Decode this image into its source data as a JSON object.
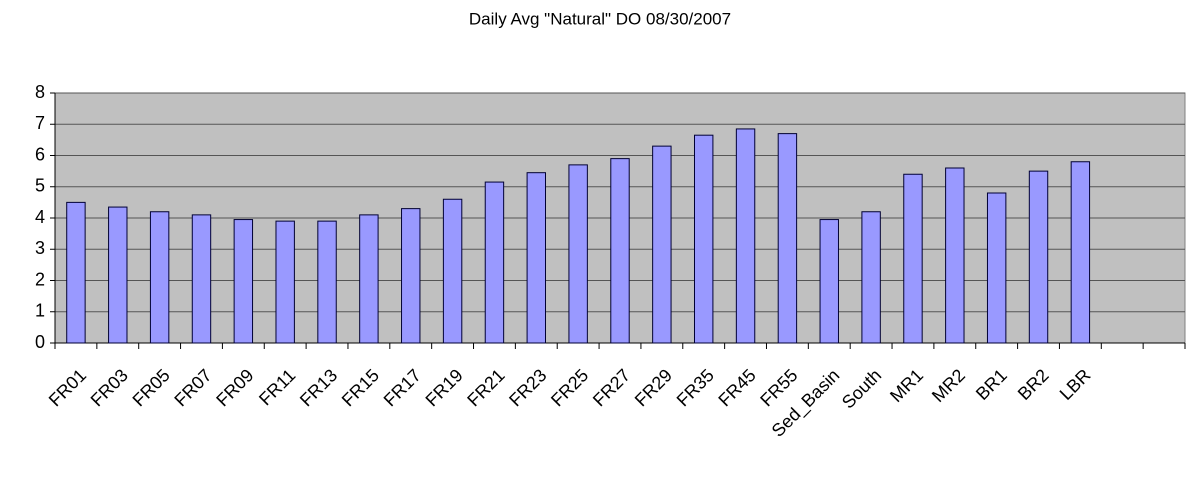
{
  "chart_data": {
    "type": "bar",
    "title": "Daily Avg \"Natural\" DO 08/30/2007",
    "categories": [
      "FR01",
      "FR03",
      "FR05",
      "FR07",
      "FR09",
      "FR11",
      "FR13",
      "FR15",
      "FR17",
      "FR19",
      "FR21",
      "FR23",
      "FR25",
      "FR27",
      "FR29",
      "FR35",
      "FR45",
      "FR55",
      "Sed_Basin",
      "South",
      "MR1",
      "MR2",
      "BR1",
      "BR2",
      "LBR",
      null,
      null
    ],
    "values": [
      4.5,
      4.35,
      4.2,
      4.1,
      3.95,
      3.9,
      3.9,
      4.1,
      4.3,
      4.6,
      5.15,
      5.45,
      5.7,
      5.9,
      6.3,
      6.65,
      6.85,
      6.7,
      3.95,
      4.2,
      5.4,
      5.6,
      4.8,
      5.5,
      5.8,
      null,
      null
    ],
    "color": "#9999ff",
    "ylim": [
      0,
      8
    ],
    "yticks": [
      0,
      1,
      2,
      3,
      4,
      5,
      6,
      7,
      8
    ],
    "grid": true
  }
}
